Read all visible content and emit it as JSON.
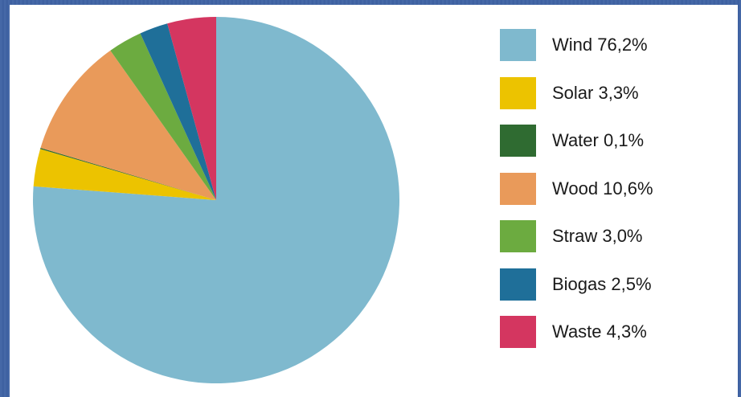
{
  "chart_data": {
    "type": "pie",
    "title": "",
    "start_angle_deg": 0,
    "direction": "clockwise",
    "slices": [
      {
        "label": "Wind",
        "percent_text": "76,2%",
        "value": 76.2,
        "color": "#7fb9ce"
      },
      {
        "label": "Solar",
        "percent_text": "3,3%",
        "value": 3.3,
        "color": "#ecc300"
      },
      {
        "label": "Water",
        "percent_text": "0,1%",
        "value": 0.1,
        "color": "#2f6b31"
      },
      {
        "label": "Wood",
        "percent_text": "10,6%",
        "value": 10.6,
        "color": "#e99a5a"
      },
      {
        "label": "Straw",
        "percent_text": "3,0%",
        "value": 3.0,
        "color": "#6cab40"
      },
      {
        "label": "Biogas",
        "percent_text": "2,5%",
        "value": 2.5,
        "color": "#1f6f99"
      },
      {
        "label": "Waste",
        "percent_text": "4,3%",
        "value": 4.3,
        "color": "#d43660"
      }
    ],
    "legend": {
      "placement": "right",
      "entries": [
        "Wind 76,2%",
        "Solar 3,3%",
        "Water 0,1%",
        "Wood 10,6%",
        "Straw 3,0%",
        "Biogas 2,5%",
        " Waste 4,3%"
      ]
    }
  }
}
